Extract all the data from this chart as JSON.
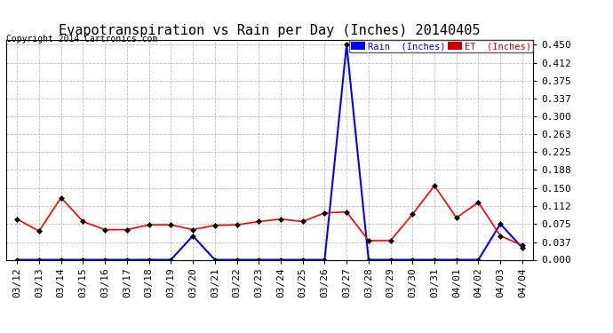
{
  "title": "Evapotranspiration vs Rain per Day (Inches) 20140405",
  "copyright": "Copyright 2014 Cartronics.com",
  "background_color": "#ffffff",
  "plot_bg_color": "#ffffff",
  "grid_color": "#bbbbbb",
  "dates": [
    "03/12",
    "03/13",
    "03/14",
    "03/15",
    "03/16",
    "03/17",
    "03/18",
    "03/19",
    "03/20",
    "03/21",
    "03/22",
    "03/23",
    "03/24",
    "03/25",
    "03/26",
    "03/27",
    "03/28",
    "03/29",
    "03/30",
    "03/31",
    "04/01",
    "04/02",
    "04/03",
    "04/04"
  ],
  "rain_inches": [
    0.0,
    0.0,
    0.0,
    0.0,
    0.0,
    0.0,
    0.0,
    0.0,
    0.05,
    0.0,
    0.0,
    0.0,
    0.0,
    0.0,
    0.0,
    0.45,
    0.0,
    0.0,
    0.0,
    0.0,
    0.0,
    0.0,
    0.075,
    0.025
  ],
  "et_inches": [
    0.085,
    0.06,
    0.13,
    0.08,
    0.063,
    0.063,
    0.073,
    0.073,
    0.063,
    0.072,
    0.073,
    0.08,
    0.085,
    0.08,
    0.098,
    0.1,
    0.04,
    0.04,
    0.095,
    0.155,
    0.088,
    0.12,
    0.05,
    0.03
  ],
  "yticks": [
    0.0,
    0.037,
    0.075,
    0.112,
    0.15,
    0.188,
    0.225,
    0.263,
    0.3,
    0.337,
    0.375,
    0.412,
    0.45
  ],
  "ylim": [
    0.0,
    0.46
  ],
  "rain_color": "#0000ff",
  "et_color": "#ff0000",
  "marker_color": "#000000",
  "legend_rain_bg": "#0000ff",
  "legend_et_bg": "#cc0000",
  "title_fontsize": 11,
  "tick_fontsize": 8,
  "copyright_fontsize": 7
}
